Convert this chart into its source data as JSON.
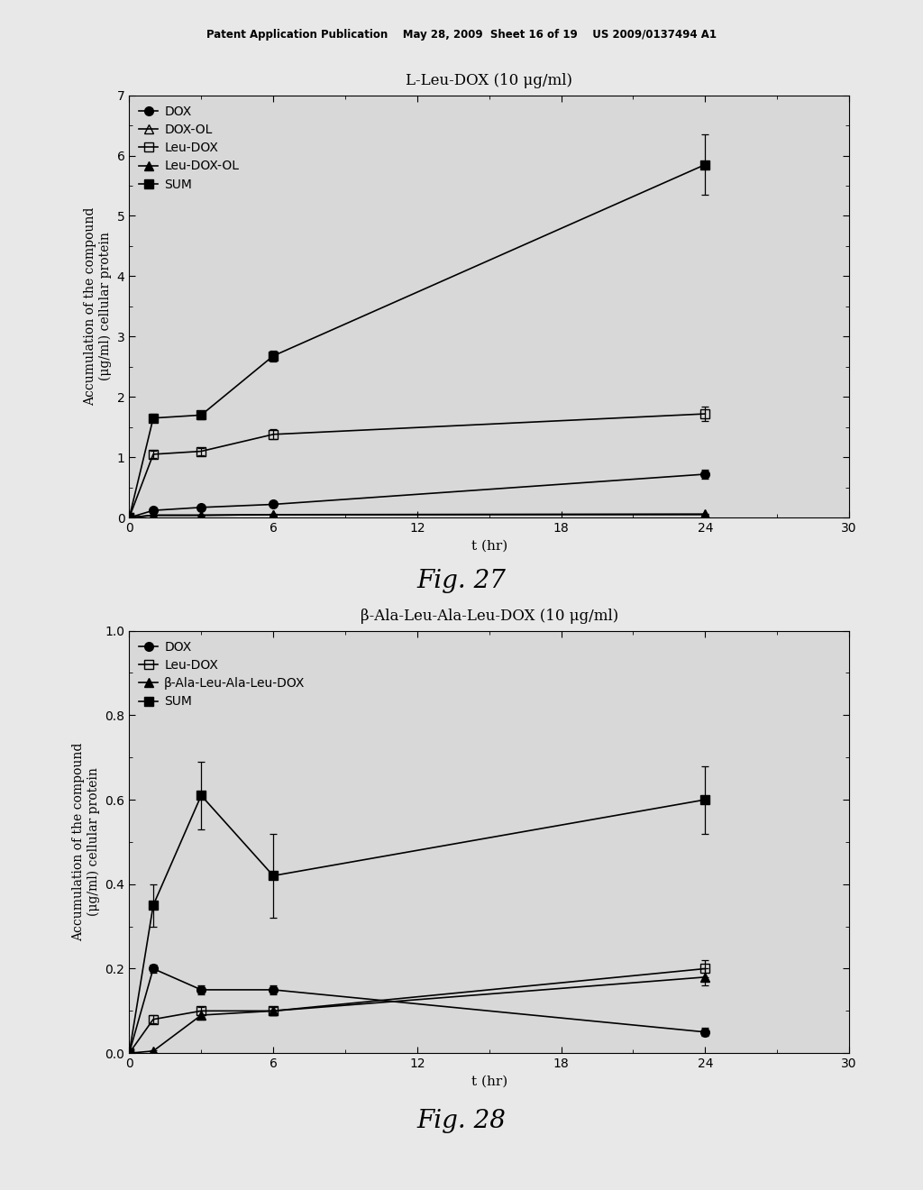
{
  "header_text": "Patent Application Publication    May 28, 2009  Sheet 16 of 19    US 2009/0137494 A1",
  "fig27": {
    "title": "L-Leu-DOX (10 μg/ml)",
    "xlabel": "t (hr)",
    "ylabel": "Accumulation of the compound\n(μg/ml) cellular protein",
    "xlim": [
      0,
      30
    ],
    "ylim": [
      0,
      7
    ],
    "yticks": [
      0,
      1,
      2,
      3,
      4,
      5,
      6,
      7
    ],
    "xticks": [
      0,
      6,
      12,
      18,
      24,
      30
    ],
    "fig_label": "Fig. 27",
    "series": {
      "DOX": {
        "x": [
          0,
          1,
          3,
          6,
          24
        ],
        "y": [
          0.0,
          0.12,
          0.17,
          0.22,
          0.72
        ],
        "yerr": [
          0.0,
          0.03,
          0.03,
          0.03,
          0.08
        ],
        "marker": "o",
        "fillstyle": "full"
      },
      "DOX-OL": {
        "x": [
          0,
          1,
          3,
          6,
          24
        ],
        "y": [
          0.0,
          0.04,
          0.04,
          0.05,
          0.05
        ],
        "yerr": [
          0.0,
          0.01,
          0.01,
          0.01,
          0.01
        ],
        "marker": "^",
        "fillstyle": "none"
      },
      "Leu-DOX": {
        "x": [
          0,
          1,
          3,
          6,
          24
        ],
        "y": [
          0.0,
          1.05,
          1.1,
          1.38,
          1.72
        ],
        "yerr": [
          0.0,
          0.06,
          0.06,
          0.08,
          0.12
        ],
        "marker": "s",
        "fillstyle": "none"
      },
      "Leu-DOX-OL": {
        "x": [
          0,
          1,
          3,
          6,
          24
        ],
        "y": [
          0.0,
          0.04,
          0.04,
          0.05,
          0.06
        ],
        "yerr": [
          0.0,
          0.01,
          0.01,
          0.01,
          0.01
        ],
        "marker": "^",
        "fillstyle": "full"
      },
      "SUM": {
        "x": [
          0,
          1,
          3,
          6,
          24
        ],
        "y": [
          0.0,
          1.65,
          1.7,
          2.68,
          5.85
        ],
        "yerr": [
          0.0,
          0.07,
          0.07,
          0.09,
          0.5
        ],
        "marker": "s",
        "fillstyle": "full"
      }
    },
    "legend_order": [
      "DOX",
      "DOX-OL",
      "Leu-DOX",
      "Leu-DOX-OL",
      "SUM"
    ]
  },
  "fig28": {
    "title": "β-Ala-Leu-Ala-Leu-DOX (10 μg/ml)",
    "xlabel": "t (hr)",
    "ylabel": "Accumulation of the compound\n(μg/ml) cellular protein",
    "xlim": [
      0,
      30
    ],
    "ylim": [
      0.0,
      1.0
    ],
    "yticks": [
      0.0,
      0.2,
      0.4,
      0.6,
      0.8,
      1.0
    ],
    "xticks": [
      0,
      6,
      12,
      18,
      24,
      30
    ],
    "fig_label": "Fig. 28",
    "series": {
      "DOX": {
        "x": [
          0,
          1,
          3,
          6,
          24
        ],
        "y": [
          0.0,
          0.2,
          0.15,
          0.15,
          0.05
        ],
        "yerr": [
          0.0,
          0.01,
          0.01,
          0.01,
          0.01
        ],
        "marker": "o",
        "fillstyle": "full"
      },
      "Leu-DOX": {
        "x": [
          0,
          1,
          3,
          6,
          24
        ],
        "y": [
          0.0,
          0.08,
          0.1,
          0.1,
          0.2
        ],
        "yerr": [
          0.0,
          0.01,
          0.01,
          0.01,
          0.02
        ],
        "marker": "s",
        "fillstyle": "none"
      },
      "B-Ala-Leu-Ala-Leu-DOX": {
        "x": [
          0,
          1,
          3,
          6,
          24
        ],
        "y": [
          0.0,
          0.005,
          0.09,
          0.1,
          0.18
        ],
        "yerr": [
          0.0,
          0.002,
          0.01,
          0.01,
          0.02
        ],
        "marker": "^",
        "fillstyle": "full"
      },
      "SUM": {
        "x": [
          0,
          1,
          3,
          6,
          24
        ],
        "y": [
          0.0,
          0.35,
          0.61,
          0.42,
          0.6
        ],
        "yerr": [
          0.0,
          0.05,
          0.08,
          0.1,
          0.08
        ],
        "marker": "s",
        "fillstyle": "full"
      }
    },
    "legend_order": [
      "DOX",
      "Leu-DOX",
      "B-Ala-Leu-Ala-Leu-DOX",
      "SUM"
    ]
  },
  "bg_color": "#e8e8e8",
  "plot_bg": "#d8d8d8"
}
